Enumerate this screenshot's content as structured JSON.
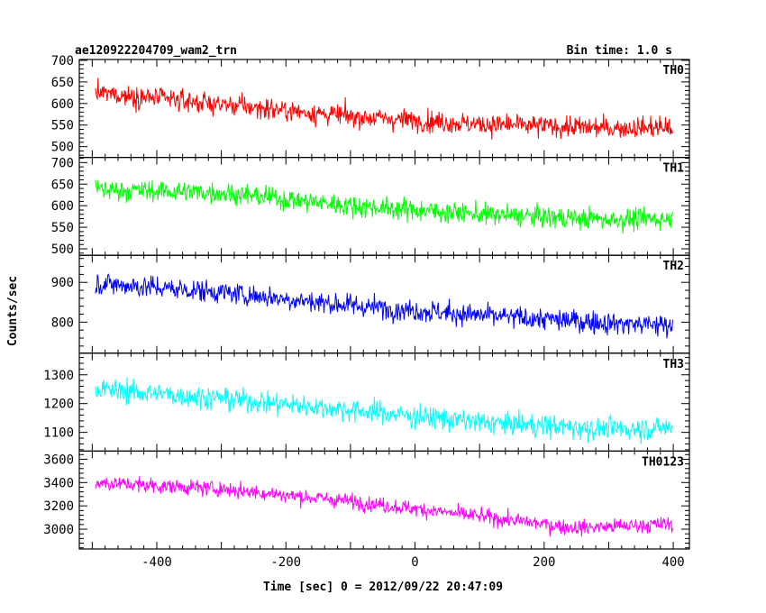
{
  "header": {
    "left": "ae120922204709_wam2_trn",
    "right": "Bin time: 1.0 s"
  },
  "chart_data": {
    "type": "line",
    "title": "ae120922204709_wam2_trn",
    "subtitle": "Bin time: 1.0 s",
    "xlabel": "Time [sec] 0 = 2012/09/22 20:47:09",
    "ylabel": "Counts/sec",
    "xlim": [
      -520,
      425
    ],
    "x_ticks": [
      -400,
      -200,
      0,
      200,
      400
    ],
    "x_start": -495,
    "x_end": 399,
    "x_step": 1,
    "panels": [
      {
        "name": "TH0",
        "color": "#ff0000",
        "ylim": [
          475,
          702
        ],
        "y_ticks": [
          500,
          550,
          600,
          650,
          700
        ],
        "trend": [
          [
            -495,
            625
          ],
          [
            -300,
            598
          ],
          [
            -100,
            570
          ],
          [
            100,
            552
          ],
          [
            300,
            543
          ],
          [
            399,
            545
          ]
        ],
        "noise": 28
      },
      {
        "name": "TH1",
        "color": "#00ff00",
        "ylim": [
          485,
          712
        ],
        "y_ticks": [
          500,
          550,
          600,
          650,
          700
        ],
        "trend": [
          [
            -495,
            638
          ],
          [
            -300,
            630
          ],
          [
            -100,
            600
          ],
          [
            100,
            580
          ],
          [
            300,
            568
          ],
          [
            399,
            570
          ]
        ],
        "noise": 28
      },
      {
        "name": "TH2",
        "color": "#0000ff",
        "ylim": [
          722,
          968
        ],
        "y_ticks": [
          800,
          900
        ],
        "trend": [
          [
            -495,
            898
          ],
          [
            -300,
            875
          ],
          [
            -100,
            842
          ],
          [
            100,
            817
          ],
          [
            300,
            798
          ],
          [
            399,
            792
          ]
        ],
        "noise": 32
      },
      {
        "name": "TH3",
        "color": "#00ffff",
        "ylim": [
          1035,
          1375
        ],
        "y_ticks": [
          1100,
          1200,
          1300
        ],
        "trend": [
          [
            -495,
            1250
          ],
          [
            -300,
            1218
          ],
          [
            -100,
            1178
          ],
          [
            100,
            1135
          ],
          [
            300,
            1112
          ],
          [
            399,
            1115
          ]
        ],
        "noise": 45
      },
      {
        "name": "TH0123",
        "color": "#ff00ff",
        "ylim": [
          2830,
          3670
        ],
        "y_ticks": [
          3000,
          3200,
          3400,
          3600
        ],
        "trend": [
          [
            -495,
            3400
          ],
          [
            -300,
            3345
          ],
          [
            -100,
            3240
          ],
          [
            100,
            3110
          ],
          [
            250,
            3010
          ],
          [
            399,
            3045
          ]
        ],
        "noise": 75
      }
    ],
    "grid": false,
    "legend": "none"
  }
}
